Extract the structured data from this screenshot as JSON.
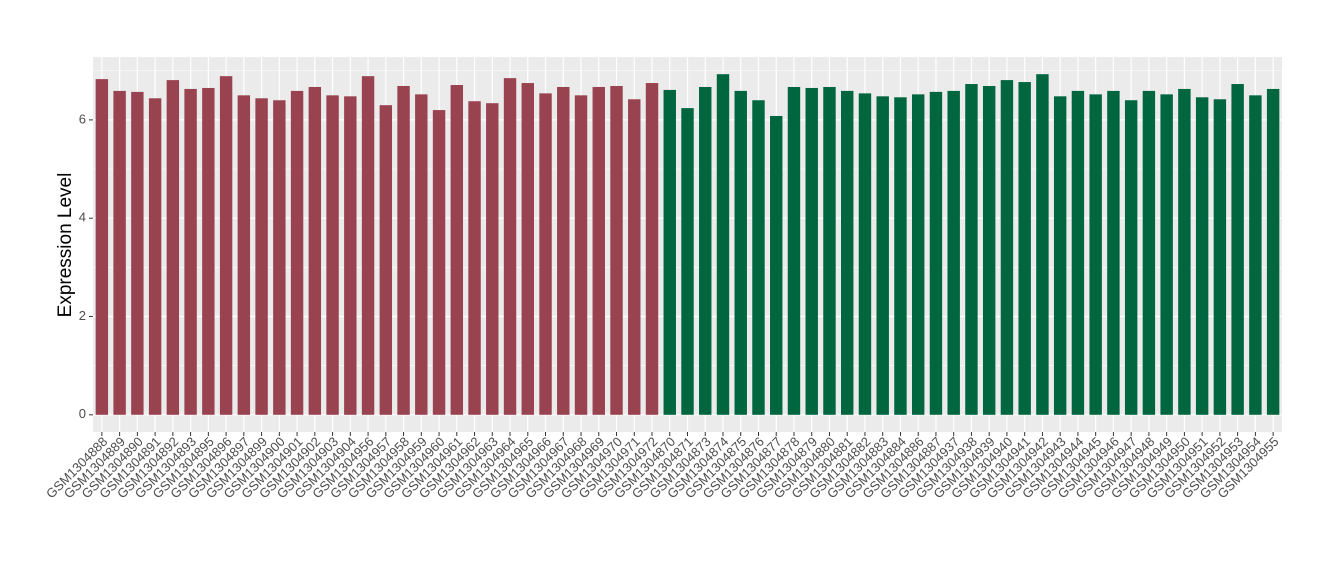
{
  "chart_data": {
    "type": "bar",
    "y_label": "Expression Level",
    "categories": [
      "GSM1304888",
      "GSM1304889",
      "GSM1304890",
      "GSM1304891",
      "GSM1304892",
      "GSM1304893",
      "GSM1304895",
      "GSM1304896",
      "GSM1304897",
      "GSM1304899",
      "GSM1304900",
      "GSM1304901",
      "GSM1304902",
      "GSM1304903",
      "GSM1304904",
      "GSM1304956",
      "GSM1304957",
      "GSM1304958",
      "GSM1304959",
      "GSM1304960",
      "GSM1304961",
      "GSM1304962",
      "GSM1304963",
      "GSM1304964",
      "GSM1304965",
      "GSM1304966",
      "GSM1304967",
      "GSM1304968",
      "GSM1304969",
      "GSM1304970",
      "GSM1304971",
      "GSM1304972",
      "GSM1304870",
      "GSM1304871",
      "GSM1304873",
      "GSM1304874",
      "GSM1304875",
      "GSM1304876",
      "GSM1304877",
      "GSM1304878",
      "GSM1304879",
      "GSM1304880",
      "GSM1304881",
      "GSM1304882",
      "GSM1304883",
      "GSM1304884",
      "GSM1304886",
      "GSM1304887",
      "GSM1304937",
      "GSM1304938",
      "GSM1304939",
      "GSM1304940",
      "GSM1304941",
      "GSM1304942",
      "GSM1304943",
      "GSM1304944",
      "GSM1304945",
      "GSM1304946",
      "GSM1304947",
      "GSM1304948",
      "GSM1304949",
      "GSM1304950",
      "GSM1304951",
      "GSM1304952",
      "GSM1304953",
      "GSM1304954",
      "GSM1304955"
    ],
    "values": [
      6.83,
      6.59,
      6.57,
      6.44,
      6.81,
      6.63,
      6.65,
      6.89,
      6.5,
      6.44,
      6.4,
      6.59,
      6.67,
      6.5,
      6.48,
      6.89,
      6.3,
      6.69,
      6.52,
      6.2,
      6.71,
      6.38,
      6.34,
      6.85,
      6.75,
      6.54,
      6.67,
      6.5,
      6.67,
      6.69,
      6.42,
      6.75,
      6.61,
      6.24,
      6.67,
      6.93,
      6.59,
      6.4,
      6.08,
      6.67,
      6.65,
      6.67,
      6.59,
      6.54,
      6.48,
      6.46,
      6.52,
      6.57,
      6.59,
      6.73,
      6.69,
      6.81,
      6.77,
      6.93,
      6.48,
      6.59,
      6.52,
      6.59,
      6.4,
      6.59,
      6.52,
      6.63,
      6.46,
      6.42,
      6.73,
      6.5,
      6.63
    ],
    "colors": [
      "#9a4350",
      "#9a4350",
      "#9a4350",
      "#9a4350",
      "#9a4350",
      "#9a4350",
      "#9a4350",
      "#9a4350",
      "#9a4350",
      "#9a4350",
      "#9a4350",
      "#9a4350",
      "#9a4350",
      "#9a4350",
      "#9a4350",
      "#9a4350",
      "#9a4350",
      "#9a4350",
      "#9a4350",
      "#9a4350",
      "#9a4350",
      "#9a4350",
      "#9a4350",
      "#9a4350",
      "#9a4350",
      "#9a4350",
      "#9a4350",
      "#9a4350",
      "#9a4350",
      "#9a4350",
      "#9a4350",
      "#9a4350",
      "#006640",
      "#006640",
      "#006640",
      "#006640",
      "#006640",
      "#006640",
      "#006640",
      "#006640",
      "#006640",
      "#006640",
      "#006640",
      "#006640",
      "#006640",
      "#006640",
      "#006640",
      "#006640",
      "#006640",
      "#006640",
      "#006640",
      "#006640",
      "#006640",
      "#006640",
      "#006640",
      "#006640",
      "#006640",
      "#006640",
      "#006640",
      "#006640",
      "#006640",
      "#006640",
      "#006640",
      "#006640",
      "#006640",
      "#006640",
      "#006640"
    ],
    "ylim": [
      -0.35,
      7.28
    ],
    "yticks": [
      0,
      2,
      4,
      6
    ],
    "minor_yticks": [
      1,
      3,
      5,
      7
    ],
    "grid": true
  }
}
